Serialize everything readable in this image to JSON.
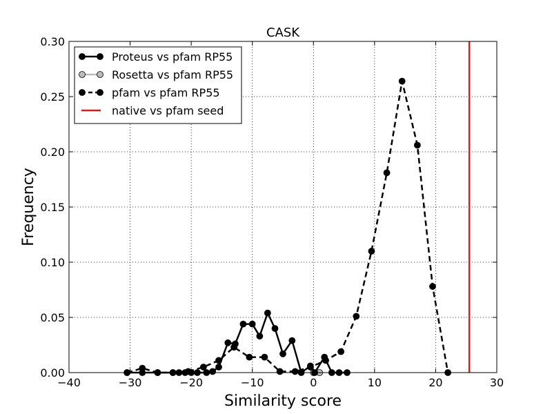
{
  "chart_data": {
    "type": "line",
    "title": "CASK",
    "xlabel": "Similarity score",
    "ylabel": "Frequency",
    "xlim": [
      -40,
      30
    ],
    "ylim": [
      0,
      0.3
    ],
    "xticks": [
      -40,
      -30,
      -20,
      -10,
      0,
      10,
      20,
      30
    ],
    "xtick_labels": [
      "−40",
      "−30",
      "−20",
      "−10",
      "0",
      "10",
      "20",
      "30"
    ],
    "yticks": [
      0.0,
      0.05,
      0.1,
      0.15,
      0.2,
      0.25,
      0.3
    ],
    "ytick_labels": [
      "0.00",
      "0.05",
      "0.10",
      "0.15",
      "0.20",
      "0.25",
      "0.30"
    ],
    "grid": true,
    "legend_position": "top-left",
    "series": [
      {
        "name": "Proteus vs pfam RP55",
        "color": "#000000",
        "marker_fill": "#000000",
        "dashed": false,
        "x": [
          -30.5,
          -28,
          -25.5,
          -23,
          -22,
          -21,
          -20,
          -19,
          -17.5,
          -16.5,
          -15.5,
          -14,
          -12.8,
          -11.5,
          -10,
          -8.8,
          -7.5,
          -6.3,
          -5,
          -3.5,
          -2,
          -0.5,
          0.2,
          1.8,
          3,
          4.2,
          5.5
        ],
        "y": [
          0.0,
          0.0,
          0.0,
          0.0,
          0.0,
          0.0,
          0.0,
          0.0,
          0.0,
          0.001,
          0.005,
          0.027,
          0.026,
          0.044,
          0.044,
          0.033,
          0.054,
          0.04,
          0.017,
          0.029,
          0.0,
          0.006,
          0.0,
          0.014,
          0.0,
          0.0,
          0.0
        ]
      },
      {
        "name": "Rosetta vs pfam RP55",
        "color": "#bbbbbb",
        "marker_fill": "#bbbbbb",
        "dashed": false,
        "x": [
          0.0,
          1.0
        ],
        "y": [
          0.0,
          0.0
        ]
      },
      {
        "name": "pfam vs pfam RP55",
        "color": "#000000",
        "marker_fill": "#000000",
        "dashed": true,
        "x": [
          -30.5,
          -28,
          -25.5,
          -23,
          -20.5,
          -18,
          -15.5,
          -13,
          -10.5,
          -8,
          -5.5,
          -3,
          -0.5,
          2,
          4.5,
          7,
          9.5,
          12,
          14.5,
          17,
          19.5,
          22
        ],
        "y": [
          0.0,
          0.004,
          0.0,
          0.0,
          0.001,
          0.005,
          0.011,
          0.023,
          0.014,
          0.014,
          0.001,
          0.001,
          0.005,
          0.011,
          0.019,
          0.051,
          0.11,
          0.181,
          0.264,
          0.206,
          0.078,
          0.0
        ]
      },
      {
        "name": "native vs pfam seed",
        "color": "#e31a1c",
        "vline": 25.5
      }
    ]
  }
}
